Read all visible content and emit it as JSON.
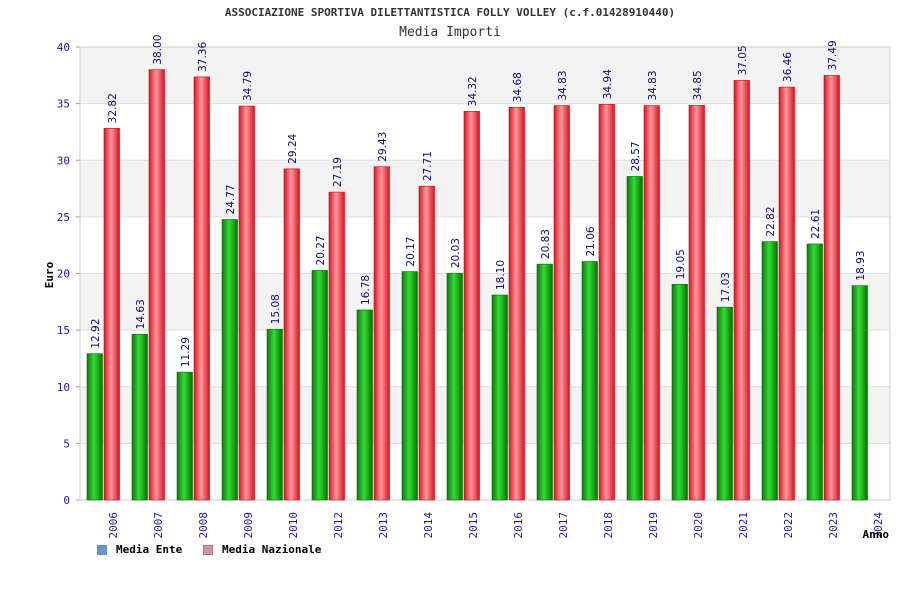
{
  "chart_data": {
    "type": "bar",
    "title": "ASSOCIAZIONE SPORTIVA DILETTANTISTICA FOLLY VOLLEY (c.f.01428910440)",
    "subtitle": "Media Importi",
    "ylabel": "Euro",
    "xlabel": "Anno",
    "ylim": [
      0,
      40
    ],
    "yticks": [
      0,
      5,
      10,
      15,
      20,
      25,
      30,
      35,
      40
    ],
    "grid": true,
    "legend_position": "bottom-left",
    "categories": [
      "2006",
      "2007",
      "2008",
      "2009",
      "2010",
      "2012",
      "2013",
      "2014",
      "2015",
      "2016",
      "2017",
      "2018",
      "2019",
      "2020",
      "2021",
      "2022",
      "2023",
      "2024"
    ],
    "series": [
      {
        "name": "Media Ente",
        "color": "#1aa41a",
        "legend_color": "#5b9bd5",
        "values": [
          12.92,
          14.63,
          11.29,
          24.77,
          15.08,
          20.27,
          16.78,
          20.17,
          20.03,
          18.1,
          20.83,
          21.06,
          28.57,
          19.05,
          17.03,
          22.82,
          22.61,
          18.93
        ],
        "labels": [
          "12.92",
          "14.63",
          "11.29",
          "24.77",
          "15.08",
          "20.27",
          "16.78",
          "20.17",
          "20.03",
          "18.10",
          "20.83",
          "21.06",
          "28.57",
          "19.05",
          "17.03",
          "22.82",
          "22.61",
          "18.93"
        ]
      },
      {
        "name": "Media Nazionale",
        "color": "#e8202a",
        "legend_color": "#d98cb3",
        "values": [
          32.82,
          38.0,
          37.36,
          34.79,
          29.24,
          27.19,
          29.43,
          27.71,
          34.32,
          34.68,
          34.83,
          34.94,
          34.83,
          34.85,
          37.05,
          36.46,
          37.49,
          null
        ],
        "labels": [
          "32.82",
          "38.00",
          "37.36",
          "34.79",
          "29.24",
          "27.19",
          "29.43",
          "27.71",
          "34.32",
          "34.68",
          "34.83",
          "34.94",
          "34.83",
          "34.85",
          "37.05",
          "36.46",
          "37.49",
          null
        ]
      }
    ]
  }
}
